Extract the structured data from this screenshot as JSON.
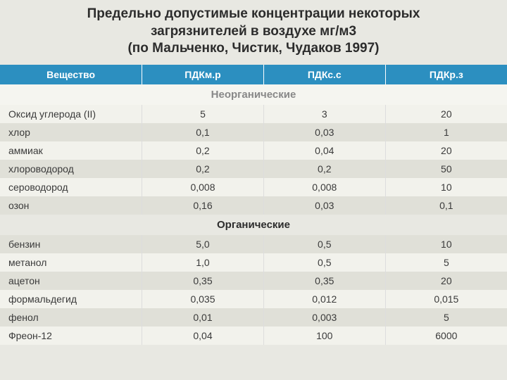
{
  "title_line1": "Предельно допустимые  концентрации некоторых",
  "title_line2": "загрязнителей в воздухе мг/м3",
  "title_line3": "(по Мальченко, Чистик, Чудаков 1997)",
  "headers": {
    "substance": "Вещество",
    "pdk_mr": "ПДКм.р",
    "pdk_ss": "ПДКс.с",
    "pdk_rz": "ПДКр.з"
  },
  "section1_label": "Неорганические",
  "section2_label": "Органические",
  "rows1": [
    {
      "name": "Оксид углерода (II)",
      "c1": "5",
      "c2": "3",
      "c3": "20"
    },
    {
      "name": "хлор",
      "c1": "0,1",
      "c2": "0,03",
      "c3": "1"
    },
    {
      "name": "аммиак",
      "c1": "0,2",
      "c2": "0,04",
      "c3": "20"
    },
    {
      "name": "хлороводород",
      "c1": "0,2",
      "c2": "0,2",
      "c3": "50"
    },
    {
      "name": "сероводород",
      "c1": "0,008",
      "c2": "0,008",
      "c3": "10"
    },
    {
      "name": "озон",
      "c1": "0,16",
      "c2": "0,03",
      "c3": "0,1"
    }
  ],
  "rows2": [
    {
      "name": "бензин",
      "c1": "5,0",
      "c2": "0,5",
      "c3": "10"
    },
    {
      "name": "метанол",
      "c1": "1,0",
      "c2": "0,5",
      "c3": "5"
    },
    {
      "name": "ацетон",
      "c1": "0,35",
      "c2": "0,35",
      "c3": "20"
    },
    {
      "name": "формальдегид",
      "c1": "0,035",
      "c2": "0,012",
      "c3": "0,015"
    },
    {
      "name": "фенол",
      "c1": "0,01",
      "c2": "0,003",
      "c3": "5"
    },
    {
      "name": "Фреон-12",
      "c1": "0,04",
      "c2": "100",
      "c3": "6000"
    }
  ],
  "col_widths": [
    "28%",
    "24%",
    "24%",
    "24%"
  ]
}
